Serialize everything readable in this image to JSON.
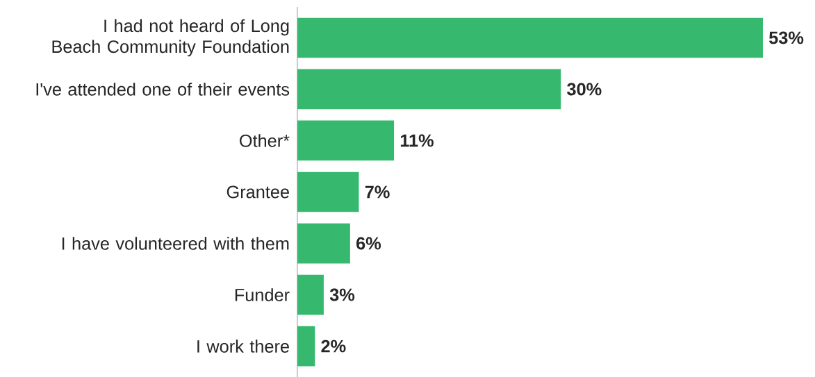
{
  "chart_data": {
    "type": "bar",
    "orientation": "horizontal",
    "color": "#36b96f",
    "categories": [
      "I had not heard of Long Beach Community Foundation",
      "I've attended one of their events",
      "Other*",
      "Grantee",
      "I have volunteered with them",
      "Funder",
      "I work there"
    ],
    "values": [
      53,
      30,
      11,
      7,
      6,
      3,
      2
    ],
    "value_labels": [
      "53%",
      "30%",
      "11%",
      "7%",
      "6%",
      "3%",
      "2%"
    ]
  }
}
